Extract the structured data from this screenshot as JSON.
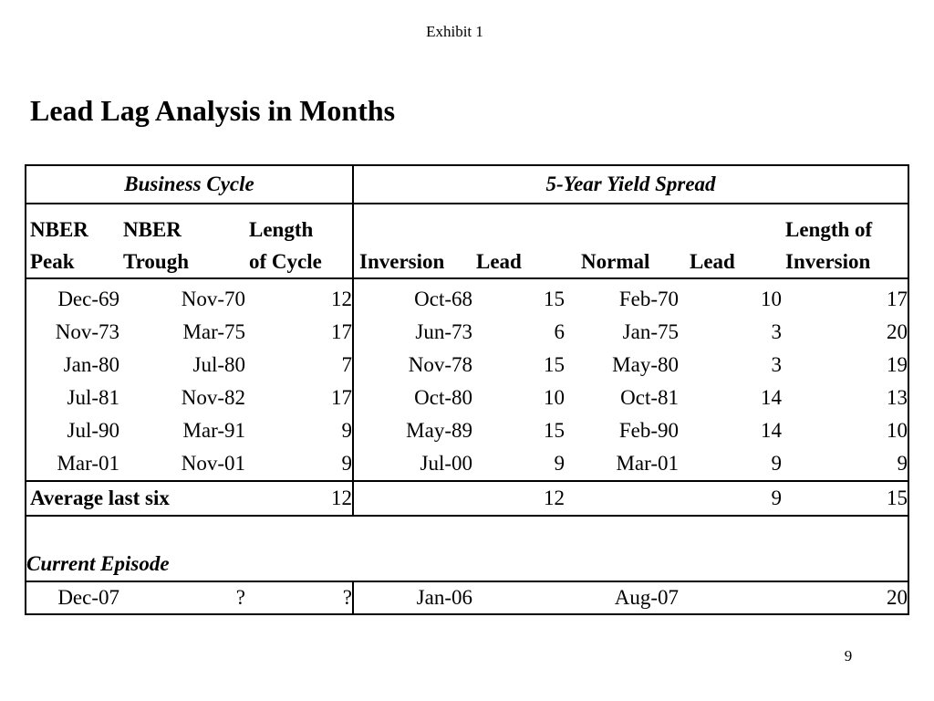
{
  "exhibit_label": "Exhibit 1",
  "title": "Lead Lag Analysis in Months",
  "page_number": "9",
  "table": {
    "group_headers": {
      "business_cycle": "Business Cycle",
      "yield_spread": "5-Year Yield Spread"
    },
    "columns": {
      "nber_peak": [
        "NBER",
        "Peak"
      ],
      "nber_trough": [
        "NBER",
        "Trough"
      ],
      "length_of_cycle": [
        "Length",
        "of Cycle"
      ],
      "inversion": "Inversion",
      "lead_1": "Lead",
      "normal": "Normal",
      "lead_2": "Lead",
      "length_of_inversion": [
        "Length of",
        "Inversion"
      ]
    },
    "rows": [
      [
        "Dec-69",
        "Nov-70",
        "12",
        "Oct-68",
        "15",
        "Feb-70",
        "10",
        "17"
      ],
      [
        "Nov-73",
        "Mar-75",
        "17",
        "Jun-73",
        "6",
        "Jan-75",
        "3",
        "20"
      ],
      [
        "Jan-80",
        "Jul-80",
        "7",
        "Nov-78",
        "15",
        "May-80",
        "3",
        "19"
      ],
      [
        "Jul-81",
        "Nov-82",
        "17",
        "Oct-80",
        "10",
        "Oct-81",
        "14",
        "13"
      ],
      [
        "Jul-90",
        "Mar-91",
        "9",
        "May-89",
        "15",
        "Feb-90",
        "14",
        "10"
      ],
      [
        "Mar-01",
        "Nov-01",
        "9",
        "Jul-00",
        "9",
        "Mar-01",
        "9",
        "9"
      ]
    ],
    "average": {
      "label": "Average last six",
      "length_of_cycle": "12",
      "lead_1": "12",
      "lead_2": "9",
      "length_of_inversion": "15"
    },
    "current_episode": {
      "label": "Current Episode",
      "nber_peak": "Dec-07",
      "nber_trough": "?",
      "length_of_cycle": "?",
      "inversion": "Jan-06",
      "normal": "Aug-07",
      "length_of_inversion": "20"
    }
  }
}
